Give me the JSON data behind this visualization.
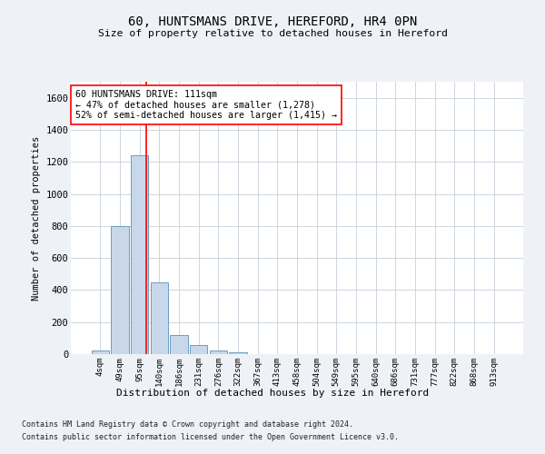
{
  "title": "60, HUNTSMANS DRIVE, HEREFORD, HR4 0PN",
  "subtitle": "Size of property relative to detached houses in Hereford",
  "xlabel": "Distribution of detached houses by size in Hereford",
  "ylabel": "Number of detached properties",
  "bar_color": "#c8d8ea",
  "bar_edge_color": "#6a9ec0",
  "categories": [
    "4sqm",
    "49sqm",
    "95sqm",
    "140sqm",
    "186sqm",
    "231sqm",
    "276sqm",
    "322sqm",
    "367sqm",
    "413sqm",
    "458sqm",
    "504sqm",
    "549sqm",
    "595sqm",
    "640sqm",
    "686sqm",
    "731sqm",
    "777sqm",
    "822sqm",
    "868sqm",
    "913sqm"
  ],
  "values": [
    20,
    800,
    1240,
    450,
    120,
    55,
    20,
    12,
    0,
    0,
    0,
    0,
    0,
    0,
    0,
    0,
    0,
    0,
    0,
    0,
    0
  ],
  "ylim": [
    0,
    1700
  ],
  "yticks": [
    0,
    200,
    400,
    600,
    800,
    1000,
    1200,
    1400,
    1600
  ],
  "property_line_x": 2.33,
  "property_line_color": "red",
  "annotation_text": "60 HUNTSMANS DRIVE: 111sqm\n← 47% of detached houses are smaller (1,278)\n52% of semi-detached houses are larger (1,415) →",
  "annotation_box_color": "white",
  "annotation_box_edge_color": "red",
  "footer_line1": "Contains HM Land Registry data © Crown copyright and database right 2024.",
  "footer_line2": "Contains public sector information licensed under the Open Government Licence v3.0.",
  "background_color": "#eef2f6",
  "plot_background_color": "white",
  "grid_color": "#c8d0da"
}
